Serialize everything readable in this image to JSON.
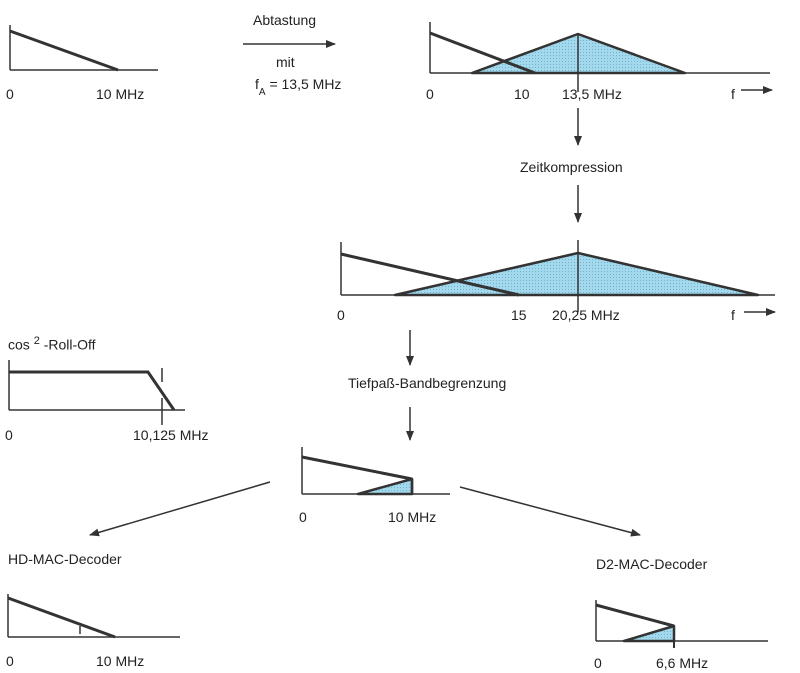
{
  "top_left": {
    "zero": "0",
    "max": "10 MHz"
  },
  "sampling": {
    "title": "Abtastung",
    "mit": "mit",
    "fa_prefix": "f",
    "fa_sub": "A",
    "fa_value": "= 13,5 MHz"
  },
  "sampled": {
    "zero": "0",
    "ten": "10",
    "center": "13,5 MHz",
    "f_axis": "f"
  },
  "time_compression": {
    "label": "Zeitkompression"
  },
  "compressed": {
    "zero": "0",
    "fifteen": "15",
    "center": "20,25 MHz",
    "f_axis": "f"
  },
  "rolloff": {
    "title_prefix": "cos",
    "title_sup": "2",
    "title_suffix": " -Roll-Off",
    "zero": "0",
    "max": "10,125 MHz"
  },
  "lowpass": {
    "label": "Tiefpaß-Bandbegrenzung"
  },
  "bandlimited": {
    "zero": "0",
    "max": "10 MHz"
  },
  "hd_mac": {
    "title": "HD-MAC-Decoder",
    "zero": "0",
    "max": "10 MHz"
  },
  "d2_mac": {
    "title": "D2-MAC-Decoder",
    "zero": "0",
    "max": "6,6 MHz"
  },
  "colors": {
    "fill": "#9fd6ea",
    "line": "#333333"
  }
}
